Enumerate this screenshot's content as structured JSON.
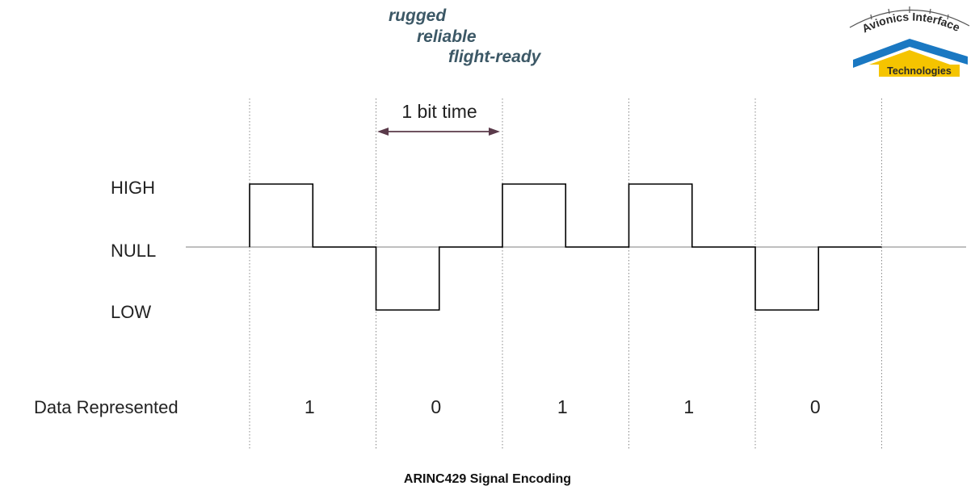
{
  "tagline": [
    "rugged",
    "reliable",
    "flight-ready"
  ],
  "logo": {
    "line1": "Avionics Interface",
    "line2": "Technologies",
    "colors": {
      "blue": "#1a78c2",
      "yellow": "#f5c400",
      "ink": "#2a2a2a"
    }
  },
  "diagram": {
    "levels": [
      "HIGH",
      "NULL",
      "LOW"
    ],
    "bit_time_label": "1 bit time",
    "row_label": "Data Represented",
    "bits": [
      "1",
      "0",
      "1",
      "1",
      "0"
    ],
    "waveform_color": "#000000",
    "divider_color": "#888888"
  },
  "caption": "ARINC429 Signal Encoding"
}
